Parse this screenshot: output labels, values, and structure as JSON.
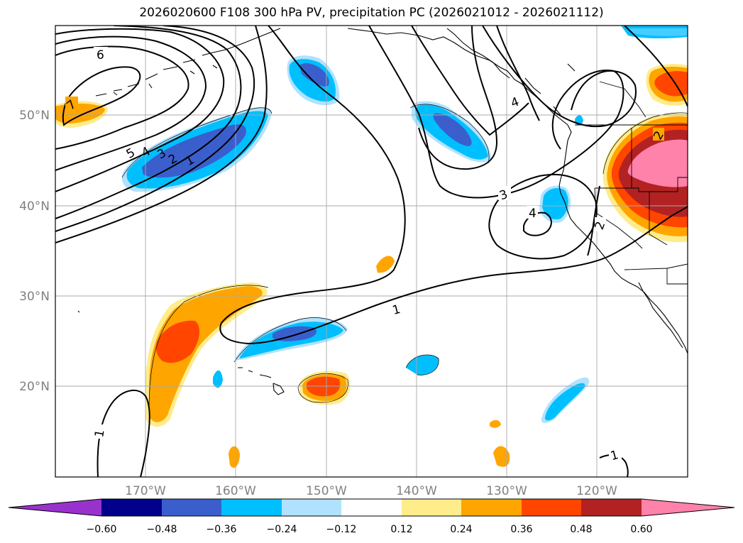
{
  "title": "2026020600 F108 300 hPa PV, precipitation PC (2026021012 - 2026021112)",
  "lat_labels": [
    "50°N",
    "40°N",
    "30°N",
    "20°N"
  ],
  "lon_labels": [
    "170°W",
    "160°W",
    "150°W",
    "140°W",
    "130°W",
    "120°W"
  ],
  "colorbar": {
    "colors": [
      "#9932cc",
      "#00008b",
      "#3a5fcd",
      "#00bfff",
      "#b0e2ff",
      "#ffffff",
      "#ffec8b",
      "#ffa500",
      "#ff4500",
      "#b22222",
      "#ff82ab"
    ],
    "ticks": [
      "−0.60",
      "−0.48",
      "−0.36",
      "−0.24",
      "−0.12",
      "0.12",
      "0.24",
      "0.36",
      "0.48",
      "0.60"
    ]
  },
  "contour_labels": [
    "6",
    "7",
    "5",
    "4",
    "3",
    "2",
    "1",
    "4",
    "3",
    "4",
    "2",
    "1",
    "1",
    "1",
    "2"
  ]
}
